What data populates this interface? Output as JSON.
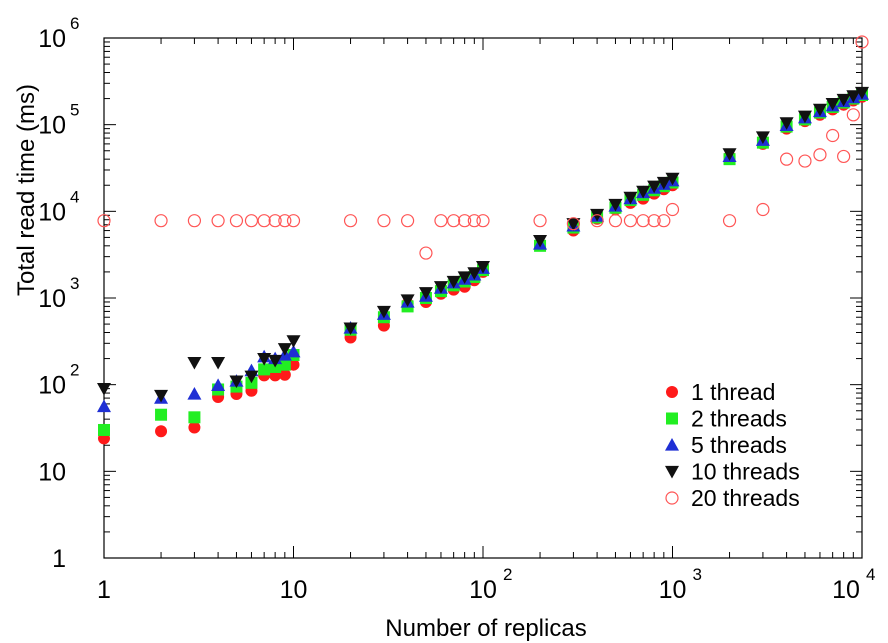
{
  "chart_data": {
    "type": "scatter",
    "xscale": "log",
    "yscale": "log",
    "xlabel": "Number of replicas",
    "ylabel": "Total read time (ms)",
    "xlim": [
      1,
      10000
    ],
    "ylim": [
      1,
      1000000
    ],
    "xticks": [
      {
        "base": "1",
        "exp": ""
      },
      {
        "base": "10",
        "exp": ""
      },
      {
        "base": "10",
        "exp": "2"
      },
      {
        "base": "10",
        "exp": "3"
      },
      {
        "base": "10",
        "exp": "4"
      }
    ],
    "yticks": [
      {
        "base": "1",
        "exp": ""
      },
      {
        "base": "10",
        "exp": ""
      },
      {
        "base": "10",
        "exp": "2"
      },
      {
        "base": "10",
        "exp": "3"
      },
      {
        "base": "10",
        "exp": "4"
      },
      {
        "base": "10",
        "exp": "5"
      },
      {
        "base": "10",
        "exp": "6"
      }
    ],
    "legend_position": "bottom-right",
    "series": [
      {
        "name": "1 thread",
        "marker": "circle",
        "color": "#ff1a1a",
        "points": [
          [
            1,
            24
          ],
          [
            2,
            29
          ],
          [
            3,
            32
          ],
          [
            4,
            72
          ],
          [
            5,
            78
          ],
          [
            6,
            85
          ],
          [
            7,
            128
          ],
          [
            8,
            128
          ],
          [
            9,
            130
          ],
          [
            10,
            170
          ],
          [
            20,
            350
          ],
          [
            30,
            480
          ],
          [
            40,
            860
          ],
          [
            50,
            900
          ],
          [
            60,
            1120
          ],
          [
            70,
            1250
          ],
          [
            80,
            1350
          ],
          [
            90,
            1600
          ],
          [
            100,
            2000
          ],
          [
            200,
            4200
          ],
          [
            300,
            6000
          ],
          [
            400,
            8200
          ],
          [
            500,
            10500
          ],
          [
            600,
            12500
          ],
          [
            700,
            14000
          ],
          [
            800,
            16000
          ],
          [
            900,
            18000
          ],
          [
            1000,
            20000
          ],
          [
            2000,
            43000
          ],
          [
            3000,
            60000
          ],
          [
            4000,
            90000
          ],
          [
            5000,
            110000
          ],
          [
            6000,
            130000
          ],
          [
            7000,
            150000
          ],
          [
            8000,
            170000
          ],
          [
            9000,
            190000
          ],
          [
            10000,
            210000
          ]
        ]
      },
      {
        "name": "2 threads",
        "marker": "square",
        "color": "#22ee22",
        "points": [
          [
            1,
            30
          ],
          [
            2,
            45
          ],
          [
            3,
            42
          ],
          [
            4,
            88
          ],
          [
            5,
            95
          ],
          [
            6,
            105
          ],
          [
            7,
            150
          ],
          [
            8,
            160
          ],
          [
            9,
            170
          ],
          [
            10,
            220
          ],
          [
            20,
            430
          ],
          [
            30,
            600
          ],
          [
            40,
            800
          ],
          [
            50,
            1000
          ],
          [
            60,
            1200
          ],
          [
            70,
            1400
          ],
          [
            80,
            1550
          ],
          [
            90,
            1750
          ],
          [
            100,
            2100
          ],
          [
            200,
            4000
          ],
          [
            300,
            6500
          ],
          [
            400,
            8500
          ],
          [
            500,
            11000
          ],
          [
            600,
            13500
          ],
          [
            700,
            15500
          ],
          [
            800,
            17500
          ],
          [
            900,
            19500
          ],
          [
            1000,
            21500
          ],
          [
            2000,
            40000
          ],
          [
            3000,
            62000
          ],
          [
            4000,
            95000
          ],
          [
            5000,
            115000
          ],
          [
            6000,
            138000
          ],
          [
            7000,
            160000
          ],
          [
            8000,
            180000
          ],
          [
            9000,
            200000
          ],
          [
            10000,
            220000
          ]
        ]
      },
      {
        "name": "5 threads",
        "marker": "triangle-up",
        "color": "#1f2fd4",
        "points": [
          [
            1,
            56
          ],
          [
            2,
            70
          ],
          [
            3,
            78
          ],
          [
            4,
            98
          ],
          [
            5,
            110
          ],
          [
            6,
            145
          ],
          [
            7,
            210
          ],
          [
            8,
            200
          ],
          [
            9,
            220
          ],
          [
            10,
            240
          ],
          [
            20,
            450
          ],
          [
            30,
            650
          ],
          [
            40,
            900
          ],
          [
            50,
            1050
          ],
          [
            60,
            1300
          ],
          [
            70,
            1500
          ],
          [
            80,
            1650
          ],
          [
            90,
            1850
          ],
          [
            100,
            2200
          ],
          [
            200,
            4200
          ],
          [
            300,
            6800
          ],
          [
            400,
            8800
          ],
          [
            500,
            11500
          ],
          [
            600,
            14000
          ],
          [
            700,
            16500
          ],
          [
            800,
            18500
          ],
          [
            900,
            20500
          ],
          [
            1000,
            22500
          ],
          [
            2000,
            43000
          ],
          [
            3000,
            66000
          ],
          [
            4000,
            98000
          ],
          [
            5000,
            120000
          ],
          [
            6000,
            142000
          ],
          [
            7000,
            165000
          ],
          [
            8000,
            185000
          ],
          [
            9000,
            205000
          ],
          [
            10000,
            225000
          ]
        ]
      },
      {
        "name": "10 threads",
        "marker": "triangle-down",
        "color": "#111111",
        "points": [
          [
            1,
            90
          ],
          [
            2,
            75
          ],
          [
            3,
            180
          ],
          [
            4,
            180
          ],
          [
            5,
            110
          ],
          [
            6,
            125
          ],
          [
            7,
            200
          ],
          [
            8,
            190
          ],
          [
            9,
            260
          ],
          [
            10,
            320
          ],
          [
            20,
            450
          ],
          [
            30,
            700
          ],
          [
            40,
            950
          ],
          [
            50,
            1150
          ],
          [
            60,
            1350
          ],
          [
            70,
            1550
          ],
          [
            80,
            1750
          ],
          [
            90,
            1950
          ],
          [
            100,
            2300
          ],
          [
            200,
            4600
          ],
          [
            300,
            7200
          ],
          [
            400,
            9200
          ],
          [
            500,
            12000
          ],
          [
            600,
            14500
          ],
          [
            700,
            17000
          ],
          [
            800,
            19500
          ],
          [
            900,
            21500
          ],
          [
            1000,
            24000
          ],
          [
            2000,
            46000
          ],
          [
            3000,
            72000
          ],
          [
            4000,
            105000
          ],
          [
            5000,
            125000
          ],
          [
            6000,
            150000
          ],
          [
            7000,
            175000
          ],
          [
            8000,
            195000
          ],
          [
            9000,
            215000
          ],
          [
            10000,
            235000
          ]
        ]
      },
      {
        "name": "20 threads",
        "marker": "circle-open",
        "color": "#ff5555",
        "points": [
          [
            1,
            7800
          ],
          [
            2,
            7800
          ],
          [
            3,
            7800
          ],
          [
            4,
            7800
          ],
          [
            5,
            7800
          ],
          [
            6,
            7800
          ],
          [
            7,
            7800
          ],
          [
            8,
            7800
          ],
          [
            9,
            7800
          ],
          [
            10,
            7800
          ],
          [
            20,
            7800
          ],
          [
            30,
            7800
          ],
          [
            40,
            7800
          ],
          [
            50,
            3300
          ],
          [
            60,
            7800
          ],
          [
            70,
            7800
          ],
          [
            80,
            7800
          ],
          [
            90,
            7800
          ],
          [
            100,
            7800
          ],
          [
            200,
            7800
          ],
          [
            300,
            7200
          ],
          [
            400,
            7800
          ],
          [
            500,
            7800
          ],
          [
            600,
            7800
          ],
          [
            700,
            7800
          ],
          [
            800,
            7800
          ],
          [
            900,
            7800
          ],
          [
            1000,
            10500
          ],
          [
            2000,
            7800
          ],
          [
            3000,
            10500
          ],
          [
            4000,
            40000
          ],
          [
            5000,
            38000
          ],
          [
            6000,
            45000
          ],
          [
            7000,
            75000
          ],
          [
            8000,
            43000
          ],
          [
            9000,
            130000
          ],
          [
            10000,
            900000
          ]
        ]
      }
    ]
  }
}
